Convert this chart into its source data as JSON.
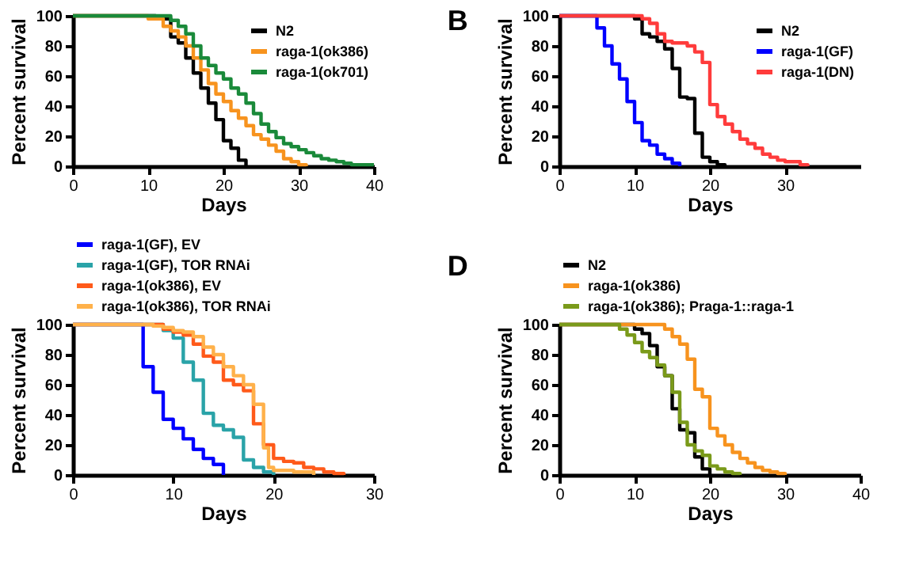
{
  "chart_data": [
    {
      "type": "step",
      "xlabel": "Days",
      "ylabel": "Percent survival",
      "xlim": [
        0,
        40
      ],
      "xticks": [
        0,
        10,
        20,
        30,
        40
      ],
      "ylim": [
        0,
        100
      ],
      "yticks": [
        0,
        20,
        40,
        60,
        80,
        100
      ],
      "grid": false,
      "legend": "top right",
      "line_style": "solid",
      "marker": "none",
      "series": [
        {
          "name": "N2",
          "color": "#000000",
          "x": [
            0,
            11,
            13,
            14,
            15,
            16,
            17,
            18,
            19,
            20,
            21,
            22,
            23
          ],
          "values": [
            100,
            98,
            86,
            82,
            72,
            62,
            52,
            42,
            31,
            17,
            12,
            4,
            0
          ]
        },
        {
          "name": "raga-1(ok386)",
          "color": "#f7931e",
          "x": [
            0,
            10,
            12,
            13,
            14,
            15,
            16,
            17,
            18,
            19,
            20,
            21,
            22,
            23,
            24,
            25,
            26,
            27,
            28,
            29,
            30,
            31
          ],
          "values": [
            100,
            98,
            93,
            90,
            86,
            80,
            72,
            64,
            55,
            48,
            43,
            37,
            32,
            27,
            21,
            18,
            14,
            10,
            5,
            3,
            1,
            0
          ]
        },
        {
          "name": "raga-1(ok701)",
          "color": "#1a8a3a",
          "x": [
            0,
            13,
            14,
            15,
            16,
            17,
            18,
            19,
            20,
            21,
            22,
            23,
            24,
            25,
            26,
            27,
            28,
            29,
            30,
            31,
            32,
            33,
            34,
            35,
            36,
            37,
            40
          ],
          "values": [
            100,
            97,
            93,
            88,
            80,
            72,
            67,
            62,
            58,
            52,
            48,
            42,
            35,
            28,
            23,
            19,
            15,
            13,
            11,
            9,
            7,
            5,
            4,
            3,
            2,
            1,
            1
          ]
        }
      ]
    },
    {
      "type": "step",
      "title": "B",
      "xlabel": "Days",
      "ylabel": "Percent survival",
      "xlim": [
        0,
        40
      ],
      "xticks": [
        0,
        10,
        20,
        30
      ],
      "ylim": [
        0,
        100
      ],
      "yticks": [
        0,
        20,
        40,
        60,
        80,
        100
      ],
      "grid": false,
      "legend": "top right",
      "line_style": "solid",
      "marker": "none",
      "series": [
        {
          "name": "N2",
          "color": "#000000",
          "x": [
            0,
            10,
            11,
            12,
            13,
            14,
            15,
            16,
            17,
            18,
            19,
            20,
            21,
            22
          ],
          "values": [
            100,
            98,
            88,
            86,
            83,
            78,
            65,
            46,
            45,
            22,
            6,
            3,
            1,
            0
          ]
        },
        {
          "name": "raga-1(GF)",
          "color": "#0000ff",
          "x": [
            0,
            5,
            6,
            7,
            8,
            9,
            10,
            11,
            12,
            13,
            14,
            15,
            16
          ],
          "values": [
            100,
            92,
            80,
            68,
            58,
            43,
            29,
            17,
            14,
            8,
            5,
            2,
            0
          ]
        },
        {
          "name": "raga-1(DN)",
          "color": "#ff3b3b",
          "x": [
            0,
            11,
            12,
            13,
            14,
            15,
            17,
            18,
            19,
            20,
            21,
            22,
            23,
            24,
            25,
            26,
            27,
            28,
            29,
            30,
            31,
            32,
            33
          ],
          "values": [
            100,
            98,
            95,
            88,
            83,
            82,
            80,
            76,
            69,
            41,
            33,
            28,
            23,
            18,
            15,
            12,
            8,
            6,
            4,
            3,
            3,
            1,
            0
          ]
        }
      ]
    },
    {
      "type": "step",
      "xlabel": "Days",
      "ylabel": "Percent survival",
      "xlim": [
        0,
        30
      ],
      "xticks": [
        0,
        10,
        20,
        30
      ],
      "ylim": [
        0,
        100
      ],
      "yticks": [
        0,
        20,
        40,
        60,
        80,
        100
      ],
      "grid": false,
      "legend": "top",
      "line_style": "solid",
      "marker": "none",
      "series": [
        {
          "name": "raga-1(GF), EV",
          "color": "#0000ff",
          "x": [
            0,
            7,
            8,
            9,
            10,
            11,
            12,
            13,
            14,
            15
          ],
          "values": [
            100,
            72,
            55,
            37,
            31,
            24,
            17,
            11,
            7,
            0
          ]
        },
        {
          "name": "raga-1(GF), TOR RNAi",
          "color": "#2aa3a8",
          "x": [
            0,
            9,
            10,
            11,
            12,
            13,
            14,
            15,
            16,
            17,
            18,
            19,
            20
          ],
          "values": [
            100,
            96,
            91,
            75,
            63,
            41,
            33,
            30,
            25,
            10,
            5,
            2,
            0
          ]
        },
        {
          "name": "raga-1(ok386), EV",
          "color": "#ff5a1a",
          "x": [
            0,
            9,
            10,
            11,
            12,
            13,
            14,
            15,
            16,
            17,
            18,
            19,
            20,
            21,
            22,
            23,
            24,
            25,
            26,
            27
          ],
          "values": [
            100,
            97,
            95,
            93,
            87,
            79,
            75,
            63,
            60,
            56,
            34,
            20,
            11,
            9,
            8,
            5,
            4,
            2,
            1,
            0
          ]
        },
        {
          "name": "raga-1(ok386), TOR RNAi",
          "color": "#ffb14a",
          "x": [
            0,
            8,
            9,
            10,
            11,
            12,
            13,
            14,
            15,
            16,
            17,
            18,
            19,
            19.5,
            20,
            22,
            24
          ],
          "values": [
            100,
            99,
            98,
            96,
            95,
            92,
            85,
            80,
            72,
            66,
            60,
            47,
            18,
            5,
            3,
            2,
            0
          ]
        }
      ]
    },
    {
      "type": "step",
      "title": "D",
      "xlabel": "Days",
      "ylabel": "Percent survival",
      "xlim": [
        0,
        40
      ],
      "xticks": [
        0,
        10,
        20,
        30,
        40
      ],
      "ylim": [
        0,
        100
      ],
      "yticks": [
        0,
        20,
        40,
        60,
        80,
        100
      ],
      "grid": false,
      "legend": "top",
      "line_style": "solid",
      "marker": "none",
      "series": [
        {
          "name": "N2",
          "color": "#000000",
          "x": [
            0,
            10,
            11,
            12,
            13,
            14,
            15,
            16,
            17,
            18,
            19,
            20
          ],
          "values": [
            100,
            97,
            94,
            86,
            72,
            66,
            44,
            30,
            28,
            12,
            4,
            0
          ]
        },
        {
          "name": "raga-1(ok386)",
          "color": "#f7931e",
          "x": [
            0,
            14,
            15,
            16,
            17,
            18,
            19,
            20,
            21,
            22,
            23,
            24,
            25,
            26,
            27,
            28,
            29,
            30
          ],
          "values": [
            100,
            97,
            92,
            87,
            77,
            57,
            52,
            31,
            26,
            20,
            15,
            11,
            8,
            5,
            3,
            2,
            1,
            0
          ]
        },
        {
          "name": "raga-1(ok386); Praga-1::raga-1",
          "color": "#7a9a1a",
          "x": [
            0,
            8,
            9,
            10,
            11,
            12,
            13,
            14,
            15,
            16,
            17,
            18,
            19,
            20,
            21,
            22,
            23,
            24
          ],
          "values": [
            100,
            97,
            93,
            88,
            82,
            78,
            73,
            66,
            55,
            35,
            20,
            16,
            13,
            6,
            4,
            2,
            1,
            0
          ]
        }
      ]
    }
  ]
}
